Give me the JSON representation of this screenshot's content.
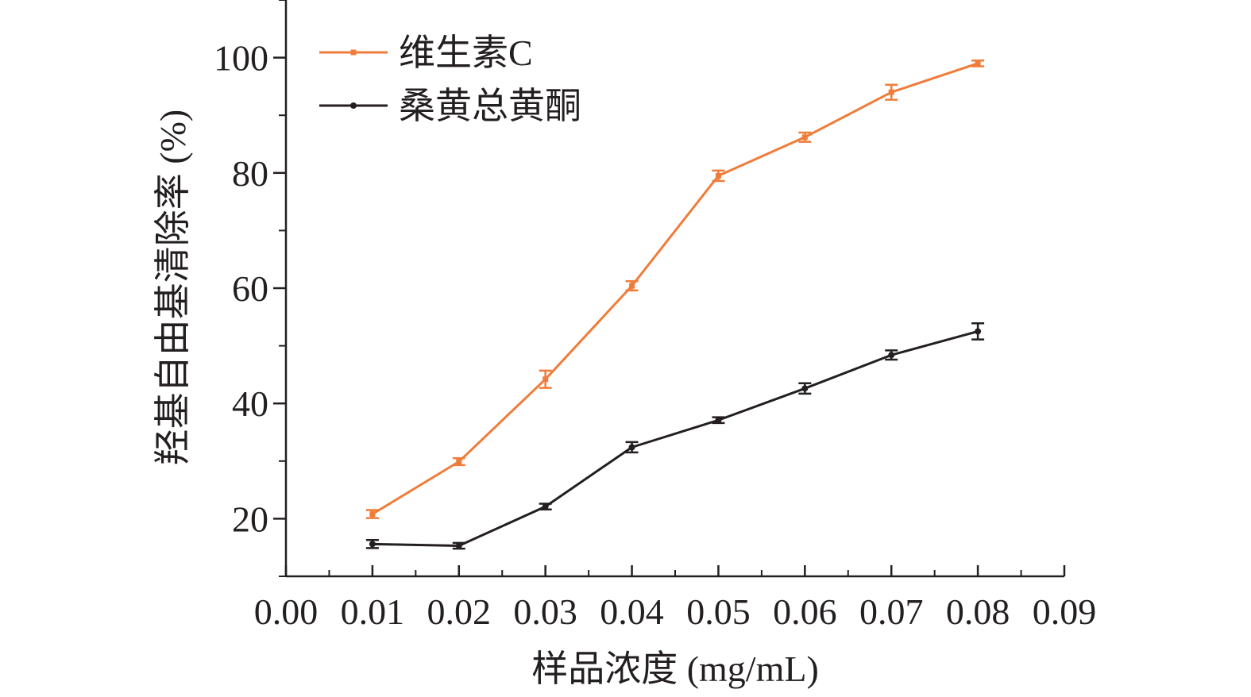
{
  "chart_data": {
    "type": "line",
    "xlabel": "样品浓度 (mg/mL)",
    "ylabel": "羟基自由基清除率 (%)",
    "xlim": [
      0.0,
      0.09
    ],
    "ylim": [
      10,
      110
    ],
    "x_ticks": [
      "0.00",
      "0.01",
      "0.02",
      "0.03",
      "0.04",
      "0.05",
      "0.06",
      "0.07",
      "0.08",
      "0.09"
    ],
    "y_ticks": [
      "20",
      "40",
      "60",
      "80",
      "100"
    ],
    "grid": false,
    "legend_position": "top-left",
    "x": [
      0.01,
      0.02,
      0.03,
      0.04,
      0.05,
      0.06,
      0.07,
      0.08
    ],
    "series": [
      {
        "name": "维生素C",
        "color": "#f07c3a",
        "marker": "square",
        "values": [
          20.8,
          29.9,
          44.2,
          60.4,
          79.5,
          86.2,
          94.0,
          99.0
        ],
        "errors": [
          0.7,
          0.6,
          1.5,
          0.8,
          0.9,
          0.8,
          1.3,
          0.5
        ]
      },
      {
        "name": "桑黄总黄酮",
        "color": "#231f20",
        "marker": "circle",
        "values": [
          15.6,
          15.3,
          22.1,
          32.4,
          37.1,
          42.6,
          48.4,
          52.5
        ],
        "errors": [
          0.7,
          0.5,
          0.5,
          0.9,
          0.5,
          0.9,
          0.8,
          1.4
        ]
      }
    ]
  }
}
